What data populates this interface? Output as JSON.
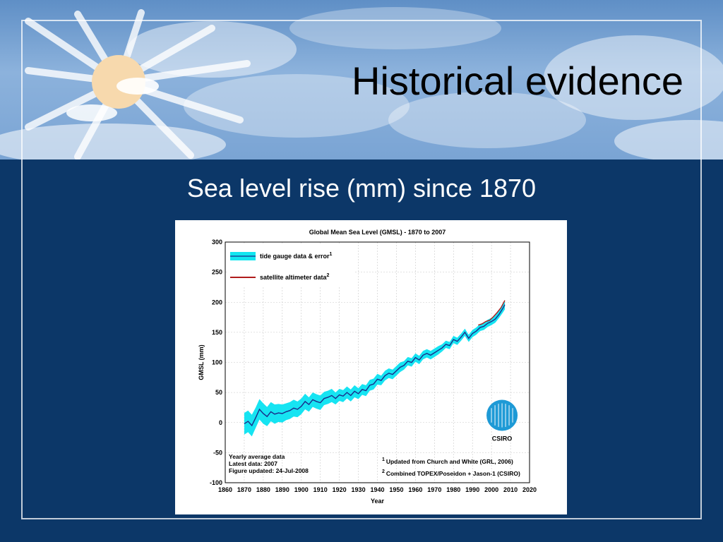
{
  "slide": {
    "title": "Historical evidence",
    "subtitle": "Sea level rise (mm) since 1870",
    "background_color": "#0c3768"
  },
  "chart_data": {
    "type": "line",
    "title": "Global Mean Sea Level (GMSL) - 1870 to 2007",
    "xlabel": "Year",
    "ylabel": "GMSL (mm)",
    "xlim": [
      1860,
      2020
    ],
    "ylim": [
      -100,
      300
    ],
    "x_ticks": [
      1860,
      1870,
      1880,
      1890,
      1900,
      1910,
      1920,
      1930,
      1940,
      1950,
      1960,
      1970,
      1980,
      1990,
      2000,
      2010,
      2020
    ],
    "y_ticks": [
      -100,
      -50,
      0,
      50,
      100,
      150,
      200,
      250,
      300
    ],
    "grid": true,
    "legend": [
      {
        "label": "tide gauge data & error",
        "sup": "1",
        "color": "#12e6f0"
      },
      {
        "label": "satellite altimeter data",
        "sup": "2",
        "color": "#b01c1c"
      }
    ],
    "series": [
      {
        "name": "tide gauge data & error",
        "color": "#1a2c8a",
        "band_color": "#16e4f2",
        "x": [
          1870,
          1872,
          1874,
          1876,
          1878,
          1880,
          1882,
          1884,
          1886,
          1888,
          1890,
          1892,
          1894,
          1896,
          1898,
          1900,
          1902,
          1904,
          1906,
          1908,
          1910,
          1912,
          1914,
          1916,
          1918,
          1920,
          1922,
          1924,
          1926,
          1928,
          1930,
          1932,
          1934,
          1936,
          1938,
          1940,
          1942,
          1944,
          1946,
          1948,
          1950,
          1952,
          1954,
          1956,
          1958,
          1960,
          1962,
          1964,
          1966,
          1968,
          1970,
          1972,
          1974,
          1976,
          1978,
          1980,
          1982,
          1984,
          1986,
          1988,
          1990,
          1992,
          1994,
          1996,
          1998,
          2000,
          2002,
          2004,
          2006,
          2007
        ],
        "values": [
          -2,
          2,
          -5,
          8,
          22,
          15,
          10,
          18,
          14,
          16,
          15,
          18,
          20,
          24,
          22,
          27,
          35,
          30,
          38,
          35,
          33,
          40,
          42,
          45,
          40,
          46,
          44,
          50,
          45,
          52,
          48,
          55,
          53,
          62,
          64,
          72,
          70,
          78,
          82,
          80,
          86,
          92,
          95,
          102,
          100,
          108,
          104,
          112,
          115,
          112,
          116,
          120,
          124,
          130,
          128,
          138,
          135,
          142,
          150,
          140,
          148,
          152,
          158,
          160,
          165,
          168,
          172,
          180,
          190,
          196
        ],
        "err": [
          18,
          18,
          18,
          17,
          17,
          17,
          16,
          16,
          16,
          15,
          15,
          14,
          14,
          14,
          13,
          13,
          13,
          12,
          12,
          12,
          12,
          11,
          11,
          11,
          10,
          10,
          10,
          10,
          10,
          10,
          9,
          9,
          9,
          9,
          9,
          9,
          8,
          8,
          8,
          8,
          8,
          8,
          7,
          7,
          7,
          7,
          7,
          7,
          7,
          7,
          7,
          7,
          6,
          6,
          6,
          6,
          6,
          6,
          6,
          6,
          6,
          6,
          6,
          6,
          6,
          6,
          6,
          6,
          7,
          8
        ]
      },
      {
        "name": "satellite altimeter data",
        "color": "#b01c1c",
        "x": [
          1993,
          1995,
          1997,
          1999,
          2001,
          2003,
          2005,
          2007
        ],
        "values": [
          162,
          164,
          168,
          170,
          176,
          183,
          191,
          203
        ]
      }
    ],
    "annotations": {
      "left": [
        "Yearly average data",
        "Latest data: 2007",
        "Figure updated: 24-Jul-2008"
      ],
      "right": [
        {
          "sup": "1",
          "text": "Updated from Church and White (GRL, 2006)"
        },
        {
          "sup": "2",
          "text": "Combined TOPEX/Poseidon + Jason-1 (CSIRO)"
        }
      ]
    },
    "logo_text": "CSIRO"
  }
}
